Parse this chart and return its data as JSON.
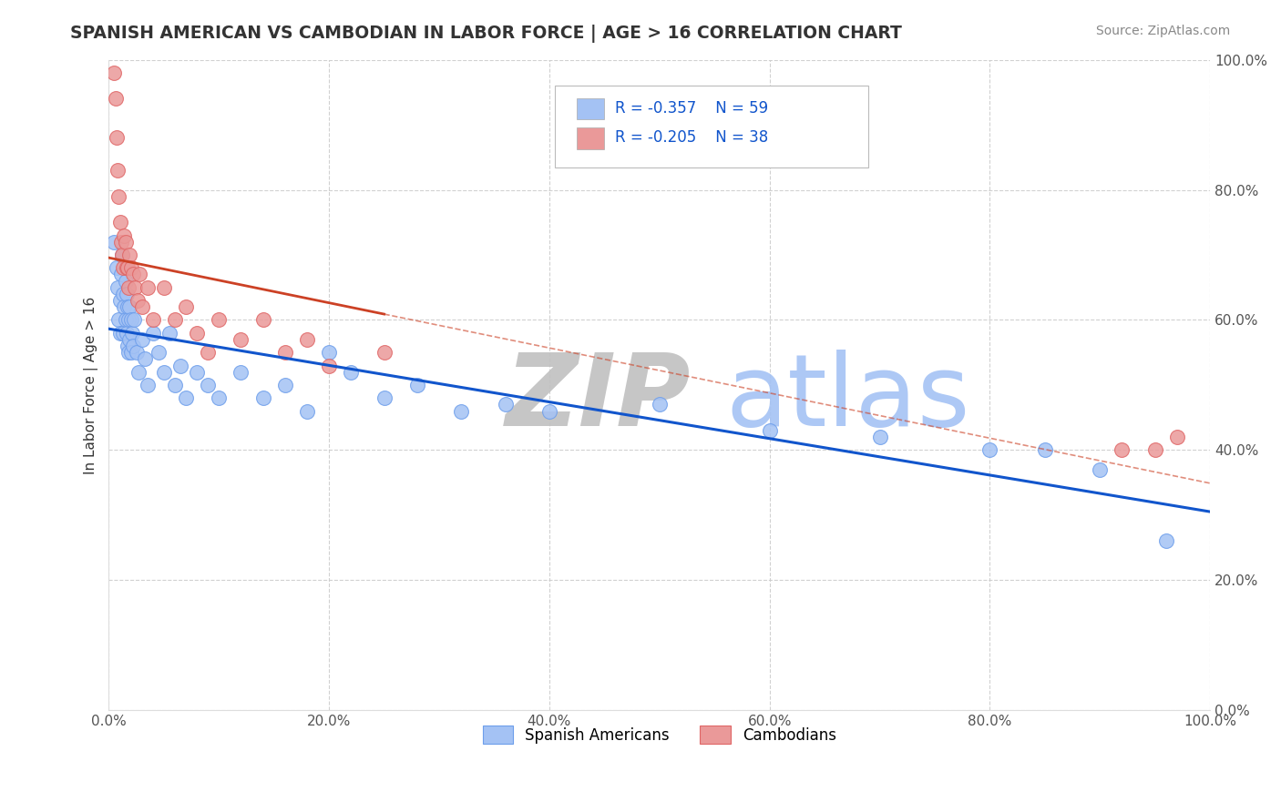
{
  "title": "SPANISH AMERICAN VS CAMBODIAN IN LABOR FORCE | AGE > 16 CORRELATION CHART",
  "source": "Source: ZipAtlas.com",
  "ylabel": "In Labor Force | Age > 16",
  "xlim": [
    0.0,
    1.0
  ],
  "ylim": [
    0.0,
    1.0
  ],
  "legend_bottom": [
    "Spanish Americans",
    "Cambodians"
  ],
  "blue_color": "#a4c2f4",
  "blue_edge_color": "#6d9eeb",
  "pink_color": "#ea9999",
  "pink_edge_color": "#e06666",
  "blue_line_color": "#1155cc",
  "pink_line_color": "#cc4125",
  "watermark_zip_color": "#c0c0c0",
  "watermark_atlas_color": "#a4c2f4",
  "background_color": "#ffffff",
  "grid_color": "#cccccc",
  "spanish_x": [
    0.005,
    0.007,
    0.008,
    0.009,
    0.01,
    0.01,
    0.011,
    0.012,
    0.013,
    0.013,
    0.014,
    0.015,
    0.015,
    0.016,
    0.016,
    0.017,
    0.017,
    0.018,
    0.018,
    0.019,
    0.019,
    0.02,
    0.02,
    0.021,
    0.022,
    0.023,
    0.025,
    0.027,
    0.03,
    0.033,
    0.035,
    0.04,
    0.045,
    0.05,
    0.055,
    0.06,
    0.065,
    0.07,
    0.08,
    0.09,
    0.1,
    0.12,
    0.14,
    0.16,
    0.18,
    0.2,
    0.22,
    0.25,
    0.28,
    0.32,
    0.36,
    0.4,
    0.5,
    0.6,
    0.7,
    0.8,
    0.85,
    0.9,
    0.96
  ],
  "spanish_y": [
    0.72,
    0.68,
    0.65,
    0.6,
    0.63,
    0.58,
    0.67,
    0.7,
    0.64,
    0.58,
    0.62,
    0.66,
    0.6,
    0.64,
    0.58,
    0.62,
    0.56,
    0.6,
    0.55,
    0.62,
    0.57,
    0.6,
    0.55,
    0.58,
    0.56,
    0.6,
    0.55,
    0.52,
    0.57,
    0.54,
    0.5,
    0.58,
    0.55,
    0.52,
    0.58,
    0.5,
    0.53,
    0.48,
    0.52,
    0.5,
    0.48,
    0.52,
    0.48,
    0.5,
    0.46,
    0.55,
    0.52,
    0.48,
    0.5,
    0.46,
    0.47,
    0.46,
    0.47,
    0.43,
    0.42,
    0.4,
    0.4,
    0.37,
    0.26
  ],
  "cambodian_x": [
    0.005,
    0.006,
    0.007,
    0.008,
    0.009,
    0.01,
    0.011,
    0.012,
    0.013,
    0.014,
    0.015,
    0.016,
    0.017,
    0.018,
    0.019,
    0.02,
    0.022,
    0.024,
    0.026,
    0.028,
    0.03,
    0.035,
    0.04,
    0.05,
    0.06,
    0.07,
    0.08,
    0.09,
    0.1,
    0.12,
    0.14,
    0.16,
    0.18,
    0.2,
    0.25,
    0.92,
    0.95,
    0.97
  ],
  "cambodian_y": [
    0.98,
    0.94,
    0.88,
    0.83,
    0.79,
    0.75,
    0.72,
    0.7,
    0.68,
    0.73,
    0.72,
    0.68,
    0.68,
    0.65,
    0.7,
    0.68,
    0.67,
    0.65,
    0.63,
    0.67,
    0.62,
    0.65,
    0.6,
    0.65,
    0.6,
    0.62,
    0.58,
    0.55,
    0.6,
    0.57,
    0.6,
    0.55,
    0.57,
    0.53,
    0.55,
    0.4,
    0.4,
    0.42
  ]
}
